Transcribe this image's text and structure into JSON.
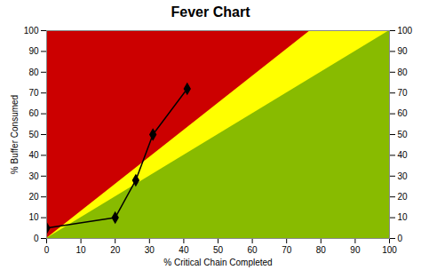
{
  "chart_data": {
    "type": "line",
    "title": "Fever Chart",
    "xlabel": "% Critical Chain Completed",
    "ylabel": "% Buffer Consumed",
    "x": [
      0,
      20,
      26,
      31,
      41
    ],
    "values": [
      5,
      10,
      28,
      50,
      72
    ],
    "color": "#000000",
    "marker": "diamond",
    "xlim": [
      0,
      100
    ],
    "ylim": [
      0,
      100
    ],
    "xticks": [
      0,
      10,
      20,
      30,
      40,
      50,
      60,
      70,
      80,
      90,
      100
    ],
    "yticks": [
      0,
      10,
      20,
      30,
      40,
      50,
      60,
      70,
      80,
      90,
      100
    ],
    "y2lim": [
      0,
      100
    ],
    "y2ticks": [
      0,
      10,
      20,
      30,
      40,
      50,
      60,
      70,
      80,
      90,
      100
    ],
    "zones": [
      {
        "color": "#CC0000",
        "upper_slope": null
      },
      {
        "color": "#FFFF00",
        "upper_slope": 1.3
      },
      {
        "color": "#88BB00",
        "upper_slope": 1.0
      }
    ],
    "grid": false
  }
}
